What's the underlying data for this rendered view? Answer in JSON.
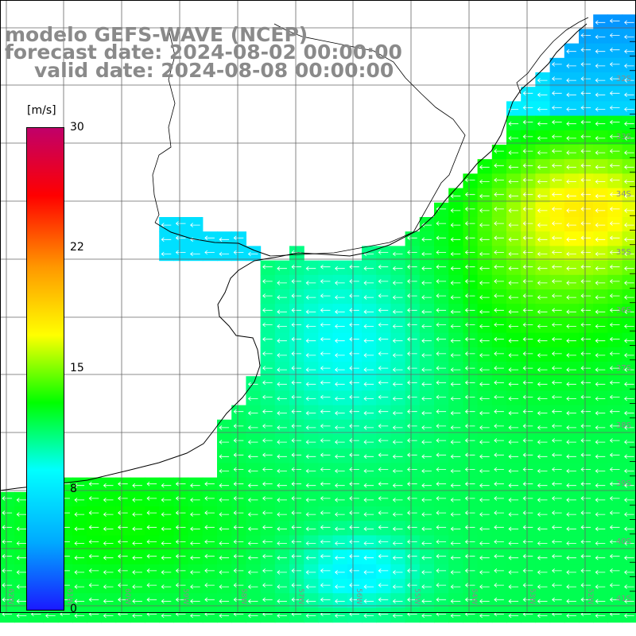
{
  "titles": {
    "line1": "modelo GEFS-WAVE (NCEP)",
    "line2": "forecast date: 2024-08-02 00:00:00",
    "line3": "valid date: 2024-08-08 00:00:00"
  },
  "colorbar": {
    "unit": "[m/s]",
    "ticks": [
      "30",
      "22",
      "15",
      "8",
      "0"
    ],
    "tick_values": [
      30,
      22,
      15,
      8,
      0
    ],
    "min": 0,
    "max": 30,
    "colors": [
      "#1a1aff",
      "#00aaff",
      "#00ffff",
      "#00ff00",
      "#ffff00",
      "#ff9900",
      "#ff0000",
      "#c0006a"
    ]
  },
  "colors": {
    "land": "#ffffff",
    "grid": "#666666",
    "coast": "#000000",
    "arrows": "#ffffff",
    "labels": "#8a8a8a"
  },
  "grid": {
    "lat_labels": [
      "32S",
      "33S",
      "34S",
      "35S",
      "36S",
      "37S",
      "38S",
      "39S",
      "40S",
      "41S"
    ],
    "lon_labels": [
      "62W",
      "61W",
      "60W",
      "59W",
      "58W",
      "57W",
      "56W",
      "55W",
      "54W",
      "53W",
      "52W",
      "51W"
    ]
  },
  "map": {
    "variable": "wind speed",
    "wind_direction": "easterly (arrows pointing west)",
    "max_speed_region": "around 34S, 52W (~16-17 m/s)",
    "min_speed_region": "around 40-41S, 56W (~9 m/s)"
  }
}
